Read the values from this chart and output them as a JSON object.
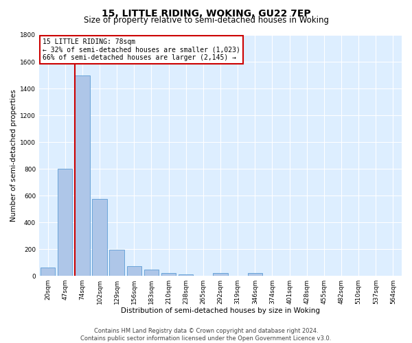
{
  "title": "15, LITTLE RIDING, WOKING, GU22 7EP",
  "subtitle": "Size of property relative to semi-detached houses in Woking",
  "xlabel": "Distribution of semi-detached houses by size in Woking",
  "ylabel": "Number of semi-detached properties",
  "footer_line1": "Contains HM Land Registry data © Crown copyright and database right 2024.",
  "footer_line2": "Contains public sector information licensed under the Open Government Licence v3.0.",
  "annotation_title": "15 LITTLE RIDING: 78sqm",
  "annotation_line2": "← 32% of semi-detached houses are smaller (1,023)",
  "annotation_line3": "66% of semi-detached houses are larger (2,145) →",
  "bar_labels": [
    "20sqm",
    "47sqm",
    "74sqm",
    "102sqm",
    "129sqm",
    "156sqm",
    "183sqm",
    "210sqm",
    "238sqm",
    "265sqm",
    "292sqm",
    "319sqm",
    "346sqm",
    "374sqm",
    "401sqm",
    "428sqm",
    "455sqm",
    "482sqm",
    "510sqm",
    "537sqm",
    "564sqm"
  ],
  "bar_values": [
    60,
    800,
    1500,
    575,
    195,
    70,
    45,
    20,
    10,
    0,
    20,
    0,
    20,
    0,
    0,
    0,
    0,
    0,
    0,
    0,
    0
  ],
  "bar_color": "#aec6e8",
  "bar_edge_color": "#5b9bd5",
  "red_line_bar_index": 2,
  "ylim": [
    0,
    1800
  ],
  "yticks": [
    0,
    200,
    400,
    600,
    800,
    1000,
    1200,
    1400,
    1600,
    1800
  ],
  "background_color": "#ddeeff",
  "annotation_box_facecolor": "#ffffff",
  "annotation_box_edgecolor": "#cc0000",
  "red_line_color": "#cc0000",
  "title_fontsize": 10,
  "subtitle_fontsize": 8.5,
  "axis_label_fontsize": 7.5,
  "tick_fontsize": 6.5,
  "annotation_fontsize": 7,
  "footer_fontsize": 6
}
